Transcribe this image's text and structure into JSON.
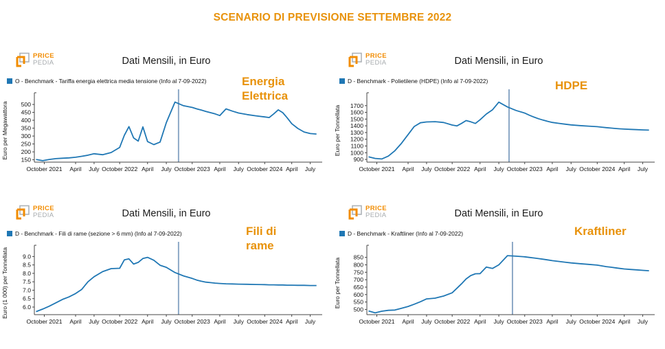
{
  "page": {
    "title": "SCENARIO DI PREVISIONE SETTEMBRE 2022",
    "accent_color": "#E8920B",
    "line_color": "#1F77B4",
    "divider_color": "#8CA8C6"
  },
  "logo": {
    "top": "PRICE",
    "bottom": "PEDIA"
  },
  "chart_axis": {
    "x_ticks": [
      {
        "label": "October 2021",
        "f": 0.035
      },
      {
        "label": "April",
        "f": 0.145
      },
      {
        "label": "July",
        "f": 0.21
      },
      {
        "label": "October 2022",
        "f": 0.3
      },
      {
        "label": "April",
        "f": 0.398
      },
      {
        "label": "July",
        "f": 0.464
      },
      {
        "label": "October 2023",
        "f": 0.555
      },
      {
        "label": "April",
        "f": 0.652
      },
      {
        "label": "July",
        "f": 0.718
      },
      {
        "label": "October 2024",
        "f": 0.81
      },
      {
        "label": "April",
        "f": 0.905
      },
      {
        "label": "July",
        "f": 0.97
      }
    ],
    "month_anchors": [
      [
        0,
        0.006
      ],
      [
        6,
        0.145
      ],
      [
        9,
        0.21
      ],
      [
        12,
        0.3
      ],
      [
        18,
        0.398
      ],
      [
        21,
        0.464
      ],
      [
        24,
        0.555
      ],
      [
        30,
        0.652
      ],
      [
        33,
        0.718
      ],
      [
        36,
        0.81
      ],
      [
        42,
        0.905
      ],
      [
        45,
        0.97
      ],
      [
        46,
        0.992
      ]
    ]
  },
  "chart_data": [
    {
      "type": "line",
      "title": "Dati Mensili, in Euro",
      "legend": "O - Benchmark - Tariffa energia elettrica media tensione (Info al 7-09-2022)",
      "label": "Energia\nElettrica",
      "ylabel": "Euro per Megawattora",
      "x_start_month": "2021-10",
      "x_end_month": "2025-08",
      "ylim": [
        135,
        535
      ],
      "y_ticks": [
        {
          "v": 150,
          "t": "150"
        },
        {
          "v": 200,
          "t": "200"
        },
        {
          "v": 250,
          "t": "250"
        },
        {
          "v": 300,
          "t": "300"
        },
        {
          "v": 350,
          "t": "350"
        },
        {
          "v": 400,
          "t": "400"
        },
        {
          "v": 450,
          "t": "450"
        },
        {
          "v": 500,
          "t": "500"
        }
      ],
      "vline_f": 0.507,
      "forecast_from_index": 23,
      "values": [
        152,
        144,
        152,
        157,
        160,
        162,
        166,
        172,
        179,
        188,
        182,
        196,
        228,
        305,
        360,
        288,
        268,
        358,
        265,
        246,
        262,
        385,
        515,
        492,
        481,
        472,
        464,
        456,
        448,
        440,
        430,
        472,
        458,
        446,
        436,
        428,
        421,
        417,
        440,
        466,
        448,
        415,
        378,
        348,
        326,
        316,
        313
      ]
    },
    {
      "type": "line",
      "title": "Dati Mensili, in Euro",
      "legend": "D - Benchmark - Polietilene (HDPE) (Info al 7-09-2022)",
      "label": "HDPE",
      "ylabel": "Euro per Tonnellata",
      "x_start_month": "2021-10",
      "x_end_month": "2025-08",
      "ylim": [
        860,
        1800
      ],
      "y_ticks": [
        {
          "v": 900,
          "t": "900"
        },
        {
          "v": 1000,
          "t": "1000"
        },
        {
          "v": 1100,
          "t": "1100"
        },
        {
          "v": 1200,
          "t": "1200"
        },
        {
          "v": 1300,
          "t": "1300"
        },
        {
          "v": 1400,
          "t": "1400"
        },
        {
          "v": 1500,
          "t": "1500"
        },
        {
          "v": 1600,
          "t": "1600"
        },
        {
          "v": 1700,
          "t": "1700"
        }
      ],
      "vline_f": 0.5,
      "forecast_from_index": 22,
      "values": [
        940,
        915,
        907,
        950,
        1030,
        1140,
        1270,
        1390,
        1445,
        1458,
        1462,
        1450,
        1412,
        1398,
        1435,
        1478,
        1460,
        1435,
        1490,
        1575,
        1640,
        1752,
        1680,
        1628,
        1590,
        1558,
        1530,
        1506,
        1485,
        1467,
        1451,
        1437,
        1425,
        1414,
        1404,
        1395,
        1387,
        1380,
        1373,
        1367,
        1361,
        1356,
        1351,
        1347,
        1343,
        1339,
        1336
      ]
    },
    {
      "type": "line",
      "title": "Dati Mensili, in Euro",
      "legend": "D - Benchmark - Fili di rame (sezione > 6 mm) (Info al 7-09-2022)",
      "label": "Fili  di\nrame",
      "ylabel": "Euro (1 000) per Tonnellata",
      "x_start_month": "2021-10",
      "x_end_month": "2025-08",
      "ylim": [
        5.55,
        9.3
      ],
      "y_ticks": [
        {
          "v": 6.0,
          "t": "6.0"
        },
        {
          "v": 6.5,
          "t": "6.5"
        },
        {
          "v": 7.0,
          "t": "7.0"
        },
        {
          "v": 7.5,
          "t": "7.5"
        },
        {
          "v": 8.0,
          "t": "8.0"
        },
        {
          "v": 8.5,
          "t": "8.5"
        },
        {
          "v": 9.0,
          "t": "9.0"
        }
      ],
      "vline_f": 0.507,
      "forecast_from_index": 23,
      "values": [
        5.73,
        5.88,
        6.05,
        6.25,
        6.45,
        6.6,
        6.8,
        7.05,
        7.5,
        7.8,
        8.1,
        8.28,
        8.3,
        8.8,
        8.86,
        8.55,
        8.65,
        8.88,
        8.95,
        8.78,
        8.48,
        8.36,
        8.05,
        7.85,
        7.7,
        7.6,
        7.53,
        7.48,
        7.45,
        7.42,
        7.4,
        7.38,
        7.37,
        7.36,
        7.35,
        7.34,
        7.33,
        7.32,
        7.32,
        7.31,
        7.31,
        7.3,
        7.3,
        7.29,
        7.29,
        7.28,
        7.28
      ]
    },
    {
      "type": "line",
      "title": "Dati Mensili, in Euro",
      "legend": "D - Benchmark - Kraftliner (Info al 7-09-2022)",
      "label": "Kraftliner",
      "ylabel": "Euro per Tonnellata",
      "x_start_month": "2021-10",
      "x_end_month": "2025-08",
      "ylim": [
        465,
        890
      ],
      "y_ticks": [
        {
          "v": 500,
          "t": "500"
        },
        {
          "v": 550,
          "t": "550"
        },
        {
          "v": 600,
          "t": "600"
        },
        {
          "v": 650,
          "t": "650"
        },
        {
          "v": 700,
          "t": "700"
        },
        {
          "v": 750,
          "t": "750"
        },
        {
          "v": 800,
          "t": "800"
        },
        {
          "v": 850,
          "t": "850"
        }
      ],
      "vline_f": 0.512,
      "forecast_from_index": 23,
      "values": [
        490,
        477,
        488,
        494,
        496,
        508,
        520,
        535,
        552,
        571,
        576,
        590,
        612,
        642,
        672,
        705,
        728,
        740,
        741,
        785,
        776,
        800,
        862,
        858,
        854,
        850,
        846,
        842,
        838,
        833,
        828,
        823,
        818,
        813,
        808,
        803,
        798,
        793,
        788,
        784,
        780,
        776,
        772,
        769,
        766,
        763,
        760
      ]
    }
  ]
}
